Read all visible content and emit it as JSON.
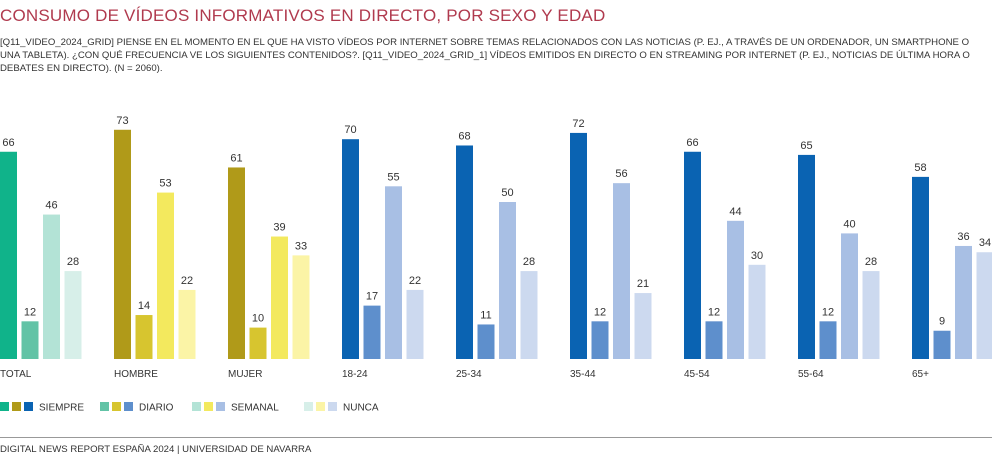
{
  "title": "CONSUMO DE VÍDEOS INFORMATIVOS EN DIRECTO, POR SEXO Y EDAD",
  "subtitle": "[Q11_VIDEO_2024_GRID] PIENSE EN EL MOMENTO EN EL QUE HA VISTO VÍDEOS POR INTERNET SOBRE TEMAS RELACIONADOS CON LAS NOTICIAS (P. EJ., A TRAVÉS DE UN ORDENADOR, UN SMARTPHONE O UNA TABLETA). ¿CON QUÉ FRECUENCIA VE LOS SIGUIENTES CONTENIDOS?. [Q11_VIDEO_2024_GRID_1] VÍDEOS EMITIDOS EN DIRECTO O EN STREAMING POR INTERNET (P. EJ., NOTICIAS DE ÚLTIMA HORA O DEBATES EN DIRECTO). (N = 2060).",
  "footer": "DIGITAL NEWS REPORT ESPAÑA 2024 | UNIVERSIDAD DE NAVARRA",
  "chart_data": {
    "type": "bar",
    "categories": [
      "TOTAL",
      "HOMBRE",
      "MUJER",
      "18-24",
      "25-34",
      "35-44",
      "45-54",
      "55-64",
      "65+"
    ],
    "series": [
      {
        "name": "SIEMPRE",
        "values": [
          66,
          73,
          61,
          70,
          68,
          72,
          66,
          65,
          58
        ]
      },
      {
        "name": "DIARIO",
        "values": [
          12,
          14,
          10,
          17,
          11,
          12,
          12,
          12,
          9
        ]
      },
      {
        "name": "SEMANAL",
        "values": [
          46,
          53,
          39,
          55,
          50,
          56,
          44,
          40,
          36
        ]
      },
      {
        "name": "NUNCA",
        "values": [
          28,
          22,
          33,
          22,
          28,
          21,
          30,
          28,
          34
        ]
      }
    ],
    "ylim": [
      0,
      80
    ],
    "grid": false,
    "legend_position": "bottom-left",
    "palettes": {
      "total": [
        "#10b38a",
        "#62c3a6",
        "#b3e3d6",
        "#d7efe9"
      ],
      "sexo": [
        "#b09a19",
        "#d7c52f",
        "#f3e95e",
        "#fbf4a6"
      ],
      "edad": [
        "#0a63b2",
        "#5e8fcc",
        "#a8bfe4",
        "#ccd9ef"
      ]
    },
    "group_palette": [
      "total",
      "sexo",
      "sexo",
      "edad",
      "edad",
      "edad",
      "edad",
      "edad",
      "edad"
    ]
  }
}
